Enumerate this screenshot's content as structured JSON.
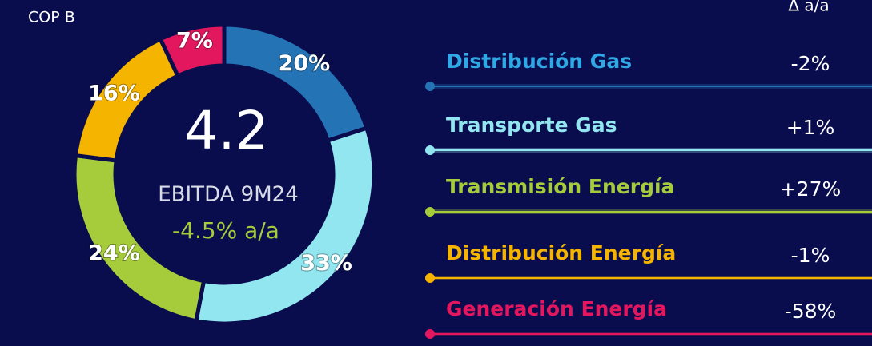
{
  "chart_data": {
    "type": "pie",
    "unit_label": "COP B",
    "center_value": "4.2",
    "center_label": "EBITDA 9M24",
    "center_change": "-4.5% a/a",
    "change_header": "Δ a/a",
    "categories": [
      "Distribución Gas",
      "Transporte Gas",
      "Transmisión Energía",
      "Distribución Energía",
      "Generación Energía"
    ],
    "values": [
      20,
      33,
      24,
      16,
      7
    ],
    "value_labels": [
      "20%",
      "33%",
      "24%",
      "16%",
      "7%"
    ],
    "colors": [
      "#2473b5",
      "#92e6f0",
      "#a6cc3b",
      "#f4b400",
      "#e2175e"
    ],
    "name_colors": [
      "#2fa8e6",
      "#92e6f0",
      "#a6cc3b",
      "#f4b400",
      "#e2175e"
    ],
    "changes": [
      "-2%",
      "+1%",
      "+27%",
      "-1%",
      "-58%"
    ]
  }
}
